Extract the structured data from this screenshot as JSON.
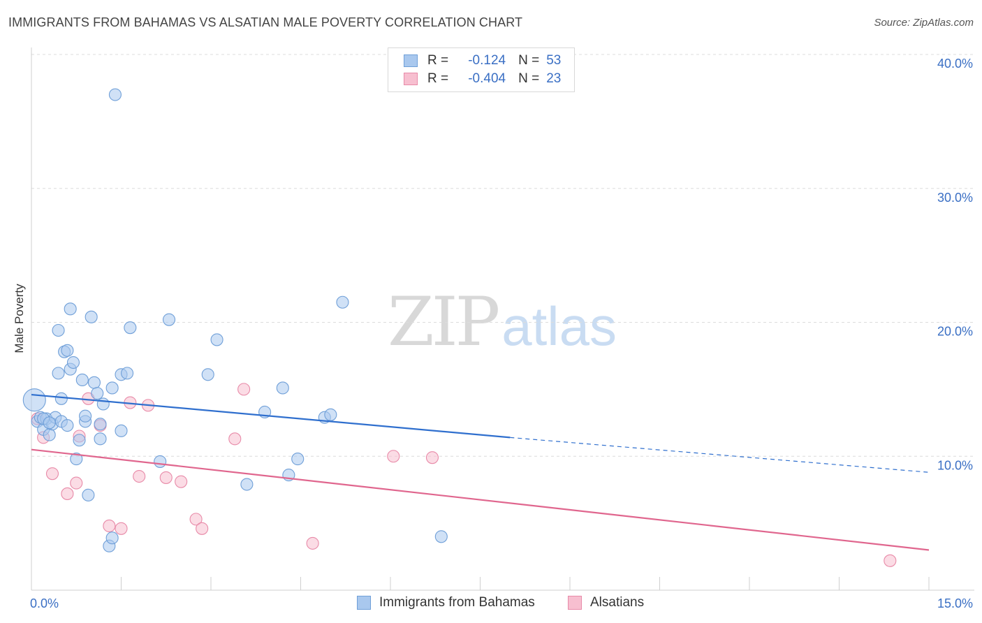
{
  "title": "IMMIGRANTS FROM BAHAMAS VS ALSATIAN MALE POVERTY CORRELATION CHART",
  "source": "Source: ZipAtlas.com",
  "watermark": {
    "zip": "ZIP",
    "atlas": "atlas"
  },
  "legend": {
    "r_label": "R =",
    "n_label": "N =",
    "rows": [
      {
        "r": "-0.124",
        "n": "53"
      },
      {
        "r": "-0.404",
        "n": "23"
      }
    ]
  },
  "bottom_legend": [
    "Immigrants from Bahamas",
    "Alsatians"
  ],
  "colors": {
    "blue_fill": "#a9c8ee",
    "blue_stroke": "#6f9fd8",
    "blue_line": "#2f6fce",
    "pink_fill": "#f7bfd0",
    "pink_stroke": "#e88aa8",
    "pink_line": "#e0668e",
    "axis_text": "#3a6fc4"
  },
  "chart_data": {
    "type": "scatter",
    "title": "IMMIGRANTS FROM BAHAMAS VS ALSATIAN MALE POVERTY CORRELATION CHART",
    "xlabel": "",
    "ylabel": "Male Poverty",
    "xlim": [
      0,
      15
    ],
    "ylim": [
      0,
      40
    ],
    "x_tick_labels": [
      "0.0%",
      "15.0%"
    ],
    "y_tick_labels": [
      "10.0%",
      "20.0%",
      "30.0%",
      "40.0%"
    ],
    "y_ticks": [
      10,
      20,
      30,
      40
    ],
    "grid": true,
    "series": [
      {
        "name": "Immigrants from Bahamas",
        "color": "#6f9fd8",
        "points": [
          [
            0.05,
            14.2
          ],
          [
            0.1,
            12.6
          ],
          [
            0.15,
            12.9
          ],
          [
            0.2,
            12.0
          ],
          [
            0.25,
            12.8
          ],
          [
            0.3,
            11.6
          ],
          [
            0.35,
            12.4
          ],
          [
            0.4,
            12.9
          ],
          [
            0.45,
            16.2
          ],
          [
            0.45,
            19.4
          ],
          [
            0.5,
            12.6
          ],
          [
            0.5,
            14.3
          ],
          [
            0.55,
            17.8
          ],
          [
            0.6,
            17.9
          ],
          [
            0.65,
            21.0
          ],
          [
            0.65,
            16.5
          ],
          [
            0.7,
            17.0
          ],
          [
            0.75,
            9.8
          ],
          [
            0.8,
            11.2
          ],
          [
            0.85,
            15.7
          ],
          [
            0.9,
            12.6
          ],
          [
            0.9,
            13.0
          ],
          [
            0.95,
            7.1
          ],
          [
            1.0,
            20.4
          ],
          [
            1.05,
            15.5
          ],
          [
            1.1,
            14.7
          ],
          [
            1.15,
            12.4
          ],
          [
            1.15,
            11.3
          ],
          [
            1.2,
            13.9
          ],
          [
            1.3,
            3.3
          ],
          [
            1.35,
            3.9
          ],
          [
            1.35,
            15.1
          ],
          [
            1.4,
            37.0
          ],
          [
            1.5,
            16.1
          ],
          [
            1.5,
            11.9
          ],
          [
            1.6,
            16.2
          ],
          [
            1.65,
            19.6
          ],
          [
            2.15,
            9.6
          ],
          [
            2.3,
            20.2
          ],
          [
            2.95,
            16.1
          ],
          [
            3.1,
            18.7
          ],
          [
            3.6,
            7.9
          ],
          [
            3.9,
            13.3
          ],
          [
            4.2,
            15.1
          ],
          [
            4.3,
            8.6
          ],
          [
            4.45,
            9.8
          ],
          [
            4.9,
            12.9
          ],
          [
            5.0,
            13.1
          ],
          [
            5.2,
            21.5
          ],
          [
            6.85,
            4.0
          ],
          [
            0.2,
            12.8
          ],
          [
            0.3,
            12.5
          ],
          [
            0.6,
            12.3
          ]
        ],
        "trend": {
          "x0": 0,
          "y0": 14.6,
          "x1_solid": 8.0,
          "y1_solid": 11.4,
          "x1": 15.0,
          "y1": 8.8
        }
      },
      {
        "name": "Alsatians",
        "color": "#e88aa8",
        "points": [
          [
            0.1,
            12.8
          ],
          [
            0.2,
            11.4
          ],
          [
            0.35,
            8.7
          ],
          [
            0.6,
            7.2
          ],
          [
            0.75,
            8.0
          ],
          [
            0.8,
            11.5
          ],
          [
            0.95,
            14.3
          ],
          [
            1.15,
            12.3
          ],
          [
            1.3,
            4.8
          ],
          [
            1.5,
            4.6
          ],
          [
            1.65,
            14.0
          ],
          [
            1.8,
            8.5
          ],
          [
            1.95,
            13.8
          ],
          [
            2.25,
            8.4
          ],
          [
            2.5,
            8.1
          ],
          [
            2.75,
            5.3
          ],
          [
            2.85,
            4.6
          ],
          [
            3.4,
            11.3
          ],
          [
            3.55,
            15.0
          ],
          [
            4.7,
            3.5
          ],
          [
            6.05,
            10.0
          ],
          [
            6.7,
            9.9
          ],
          [
            14.35,
            2.2
          ]
        ],
        "trend": {
          "x0": 0,
          "y0": 10.5,
          "x1": 15.0,
          "y1": 3.0
        }
      }
    ]
  }
}
